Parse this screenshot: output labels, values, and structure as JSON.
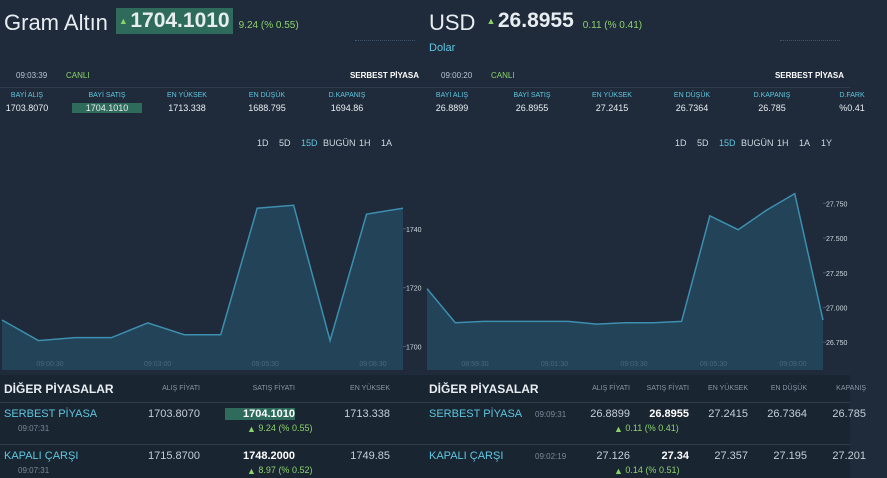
{
  "panels": [
    {
      "name": "Gram Altın",
      "price": "1704.1010",
      "change": "9.24 (% 0.55)",
      "time": "09:03:39",
      "status": "CANLI",
      "market": "SERBEST PİYASA",
      "stats": [
        {
          "label": "BAYİ ALIŞ",
          "value": "1703.8070"
        },
        {
          "label": "BAYİ SATIŞ",
          "value": "1704.1010"
        },
        {
          "label": "EN YÜKSEK",
          "value": "1713.338"
        },
        {
          "label": "EN DÜŞÜK",
          "value": "1688.795"
        },
        {
          "label": "D.KAPANIŞ",
          "value": "1694.86"
        }
      ],
      "ranges": [
        "1D",
        "5D",
        "15D",
        "BUGÜN",
        "1H",
        "1A"
      ],
      "chart": {
        "type": "line",
        "values": [
          1709,
          1702,
          1703,
          1703,
          1708,
          1704,
          1704,
          1747,
          1748,
          1702,
          1745,
          1747
        ],
        "ylim": [
          1692,
          1760
        ],
        "yticks": [
          1700,
          1720,
          1740
        ],
        "xlabels": [
          "09:00:30",
          "09:03:00",
          "09:05:30",
          "09:08:30"
        ]
      },
      "other": {
        "title": "DİĞER PİYASALAR",
        "columns": [
          "ALIŞ FİYATI",
          "SATIŞ FİYATI",
          "EN YÜKSEK"
        ],
        "rows": [
          {
            "name": "SERBEST PİYASA",
            "time": "09:07:31",
            "cells": [
              "1703.8070",
              "1704.1010",
              "1713.338"
            ],
            "change": "9.24 (% 0.55)"
          },
          {
            "name": "KAPALI ÇARŞI",
            "time": "09:07:31",
            "cells": [
              "1715.8700",
              "1748.2000",
              "1749.85"
            ],
            "change": "8.97 (% 0.52)"
          }
        ]
      }
    },
    {
      "name": "USD",
      "subtitle": "Dolar",
      "price": "26.8955",
      "change": "0.11 (% 0.41)",
      "time": "09:00:20",
      "status": "CANLI",
      "market": "SERBEST PİYASA",
      "stats": [
        {
          "label": "BAYİ ALIŞ",
          "value": "26.8899"
        },
        {
          "label": "BAYİ SATIŞ",
          "value": "26.8955"
        },
        {
          "label": "EN YÜKSEK",
          "value": "27.2415"
        },
        {
          "label": "EN DÜŞÜK",
          "value": "26.7364"
        },
        {
          "label": "D.KAPANIŞ",
          "value": "26.785"
        },
        {
          "label": "D.FARK",
          "value": "%0.41"
        }
      ],
      "ranges": [
        "1D",
        "5D",
        "15D",
        "BUGÜN",
        "1H",
        "1A",
        "1Y"
      ],
      "chart": {
        "type": "line",
        "values": [
          27.136,
          26.89,
          26.9,
          26.9,
          26.9,
          26.9,
          26.88,
          26.89,
          26.89,
          26.9,
          27.66,
          27.56,
          27.7,
          27.82,
          26.91
        ],
        "ylim": [
          26.55,
          27.99
        ],
        "yticks": [
          {
            "value": 26.75,
            "label": "26.750"
          },
          {
            "value": 27,
            "label": "27.000"
          },
          {
            "value": 27.25,
            "label": "27.250"
          },
          {
            "value": 27.5,
            "label": "27.500"
          },
          {
            "value": 27.75,
            "label": "27.750"
          }
        ],
        "xlabels": [
          "08:59:30",
          "09:01:30",
          "09:03:30",
          "09:05:30",
          "09:09:00"
        ]
      },
      "other": {
        "title": "DİĞER PİYASALAR",
        "columns": [
          "ALIŞ FİYATI",
          "SATIŞ FİYATI",
          "EN YÜKSEK",
          "EN DÜŞÜK",
          "KAPANIŞ"
        ],
        "rows": [
          {
            "name": "SERBEST PİYASA",
            "time": "09:09:31",
            "cells": [
              "26.8899",
              "26.8955",
              "27.2415",
              "26.7364",
              "26.785"
            ],
            "change": "0.11 (% 0.41)"
          },
          {
            "name": "KAPALI ÇARŞI",
            "time": "09:02:19",
            "cells": [
              "27.126",
              "27.34",
              "27.357",
              "27.195",
              "27.201"
            ],
            "change": "0.14 (% 0.51)"
          }
        ]
      }
    }
  ]
}
